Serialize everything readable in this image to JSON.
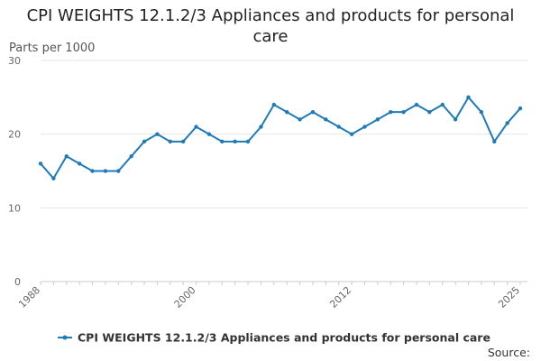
{
  "chart_data": {
    "type": "line",
    "title": "CPI WEIGHTS 12.1.2/3 Appliances and products for personal care",
    "ylabel": "Parts per 1000",
    "xlabel": "",
    "ylim": [
      0,
      30
    ],
    "yticks": [
      0,
      10,
      20,
      30
    ],
    "xlim": [
      1988,
      2025
    ],
    "xtick_labels": [
      "1988",
      "2000",
      "2012",
      "2025"
    ],
    "xtick_values": [
      1988,
      2000,
      2012,
      2025
    ],
    "grid": true,
    "legend_position": "bottom",
    "source_label": "Source:",
    "series": [
      {
        "name": "CPI WEIGHTS 12.1.2/3 Appliances and products for personal care",
        "color": "#1f7bb6",
        "x": [
          1988,
          1989,
          1990,
          1991,
          1992,
          1993,
          1994,
          1995,
          1996,
          1997,
          1998,
          1999,
          2000,
          2001,
          2002,
          2003,
          2004,
          2005,
          2006,
          2007,
          2008,
          2009,
          2010,
          2011,
          2012,
          2013,
          2014,
          2015,
          2016,
          2017,
          2018,
          2019,
          2020,
          2021,
          2022,
          2023,
          2024,
          2025
        ],
        "values": [
          16,
          14,
          17,
          16,
          15,
          15,
          15,
          17,
          19,
          20,
          19,
          19,
          21,
          20,
          19,
          19,
          19,
          21,
          24,
          23,
          22,
          23,
          22,
          21,
          20,
          21,
          22,
          23,
          23,
          24,
          23,
          24,
          22,
          25,
          23,
          19,
          21.5,
          23.5
        ]
      }
    ]
  }
}
